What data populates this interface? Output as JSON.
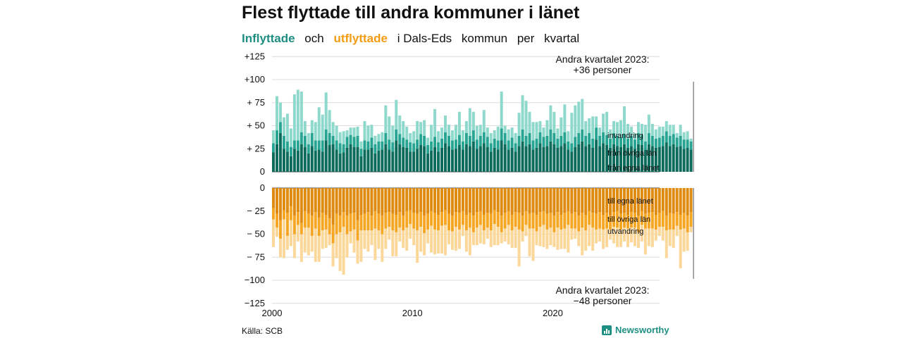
{
  "header": {
    "title": "Flest flyttade till andra kommuner i länet",
    "subtitle": {
      "inflyttade": "Inflyttade",
      "och": "och",
      "utflyttade": "utflyttade",
      "rest": [
        "i Dals-Eds",
        "kommun",
        "per",
        "kvartal"
      ]
    }
  },
  "footer": {
    "source": "Källa: SCB",
    "brand": "Newsworthy"
  },
  "colors": {
    "in_egna": "#0d6b5b",
    "in_ovriga": "#27a592",
    "in_utland": "#8ed8cc",
    "out_egna": "#df8a10",
    "out_ovriga": "#f5a623",
    "out_utland": "#fbd79a"
  },
  "chart_data": {
    "type": "bar",
    "stacked": true,
    "x_start": 2000,
    "x_step": "quarter",
    "x_ticks": [
      "2000",
      "2010",
      "2020"
    ],
    "y_ticks_top": [
      {
        "value": 125,
        "label": "+125"
      },
      {
        "value": 100,
        "label": "+100"
      },
      {
        "value": 75,
        "label": "+ 75"
      },
      {
        "value": 50,
        "label": "+ 50"
      },
      {
        "value": 25,
        "label": "+ 25"
      },
      {
        "value": 0,
        "label": "0"
      }
    ],
    "y_ticks_bottom": [
      {
        "value": 0,
        "label": "0"
      },
      {
        "value": -25,
        "label": "− 25"
      },
      {
        "value": -50,
        "label": "− 50"
      },
      {
        "value": -75,
        "label": "− 75"
      },
      {
        "value": -100,
        "label": "−100"
      },
      {
        "value": -125,
        "label": "−125"
      }
    ],
    "series_labels_top": [
      "invandring",
      "från övriga län",
      "från egna länet"
    ],
    "series_labels_bottom": [
      "till egna länet",
      "till övriga län",
      "utvandring"
    ],
    "annotation_top": [
      "Andra kvartalet 2023:",
      "+36 personer"
    ],
    "annotation_bottom": [
      "Andra kvartalet 2023:",
      "−48 personer"
    ],
    "inflyttade": {
      "fran_egna_lanet": [
        21,
        30,
        42,
        25,
        22,
        17,
        25,
        23,
        30,
        27,
        20,
        28,
        23,
        24,
        22,
        34,
        29,
        30,
        24,
        20,
        21,
        26,
        30,
        27,
        27,
        17,
        24,
        24,
        26,
        20,
        23,
        24,
        30,
        24,
        22,
        34,
        30,
        27,
        26,
        22,
        22,
        25,
        29,
        28,
        20,
        23,
        27,
        22,
        26,
        31,
        28,
        24,
        25,
        29,
        24,
        30,
        28,
        33,
        25,
        28,
        31,
        27,
        22,
        26,
        24,
        34,
        30,
        24,
        26,
        22,
        28,
        33,
        28,
        30,
        24,
        26,
        31,
        27,
        28,
        33,
        30,
        26,
        28,
        31,
        24,
        22,
        27,
        30,
        33,
        28,
        30,
        26,
        35,
        28,
        31,
        29,
        26,
        30,
        28,
        27,
        30,
        26,
        28,
        25,
        30,
        29,
        24,
        30,
        28,
        26,
        27,
        28,
        32,
        28,
        30,
        27,
        28,
        25,
        26,
        24
      ],
      "fran_ovriga_lan": [
        10,
        15,
        12,
        14,
        11,
        10,
        9,
        11,
        13,
        12,
        10,
        14,
        11,
        10,
        12,
        12,
        13,
        9,
        10,
        11,
        9,
        12,
        10,
        11,
        12,
        8,
        10,
        9,
        11,
        10,
        10,
        9,
        12,
        11,
        10,
        12,
        11,
        10,
        9,
        10,
        9,
        10,
        12,
        11,
        9,
        10,
        11,
        10,
        10,
        12,
        11,
        10,
        10,
        11,
        9,
        12,
        11,
        12,
        10,
        11,
        12,
        11,
        9,
        10,
        10,
        13,
        12,
        10,
        11,
        9,
        11,
        13,
        11,
        12,
        10,
        10,
        12,
        11,
        11,
        13,
        12,
        10,
        11,
        12,
        9,
        9,
        11,
        12,
        13,
        11,
        12,
        10,
        13,
        11,
        12,
        11,
        10,
        12,
        11,
        10,
        11,
        10,
        11,
        10,
        12,
        11,
        9,
        12,
        11,
        10,
        10,
        11,
        12,
        11,
        11,
        10,
        11,
        10,
        9,
        9
      ],
      "invandring": [
        14,
        37,
        21,
        20,
        30,
        20,
        50,
        55,
        44,
        16,
        12,
        14,
        20,
        36,
        28,
        40,
        25,
        15,
        16,
        12,
        14,
        7,
        8,
        10,
        10,
        8,
        21,
        17,
        14,
        9,
        8,
        10,
        30,
        25,
        18,
        32,
        20,
        18,
        14,
        10,
        13,
        20,
        13,
        17,
        8,
        18,
        30,
        12,
        12,
        18,
        12,
        11,
        16,
        25,
        12,
        13,
        30,
        20,
        15,
        12,
        24,
        10,
        11,
        9,
        15,
        40,
        8,
        12,
        11,
        11,
        25,
        37,
        38,
        23,
        20,
        18,
        12,
        10,
        17,
        26,
        23,
        11,
        20,
        30,
        11,
        33,
        34,
        34,
        33,
        16,
        16,
        24,
        12,
        9,
        20,
        25,
        10,
        13,
        15,
        19,
        30,
        16,
        10,
        7,
        12,
        12,
        18,
        20,
        13,
        10,
        12,
        10,
        11,
        12,
        10,
        5,
        12,
        8,
        9,
        3
      ]
    },
    "utflyttade": {
      "till_egna_lanet": [
        -22,
        -28,
        -35,
        -24,
        -27,
        -20,
        -30,
        -26,
        -38,
        -25,
        -28,
        -30,
        -26,
        -32,
        -27,
        -29,
        -33,
        -40,
        -28,
        -30,
        -26,
        -30,
        -28,
        -27,
        -35,
        -29,
        -28,
        -26,
        -30,
        -25,
        -28,
        -30,
        -27,
        -26,
        -28,
        -29,
        -26,
        -30,
        -25,
        -24,
        -27,
        -28,
        -26,
        -30,
        -28,
        -25,
        -27,
        -29,
        -26,
        -24,
        -28,
        -30,
        -26,
        -27,
        -25,
        -29,
        -27,
        -30,
        -26,
        -25,
        -29,
        -27,
        -28,
        -24,
        -26,
        -30,
        -27,
        -25,
        -29,
        -26,
        -27,
        -30,
        -25,
        -28,
        -27,
        -29,
        -26,
        -25,
        -28,
        -27,
        -30,
        -26,
        -29,
        -27,
        -25,
        -28,
        -26,
        -30,
        -27,
        -29,
        -25,
        -27,
        -28,
        -26,
        -29,
        -27,
        -30,
        -26,
        -25,
        -28,
        -27,
        -29,
        -26,
        -27,
        -30,
        -25,
        -28,
        -27,
        -26,
        -29,
        -27,
        -25,
        -30,
        -27,
        -28,
        -26,
        -29,
        -27,
        -30,
        -26
      ],
      "till_ovriga_lan": [
        -12,
        -15,
        -20,
        -10,
        -25,
        -15,
        -20,
        -14,
        -12,
        -18,
        -15,
        -22,
        -18,
        -20,
        -19,
        -16,
        -17,
        -20,
        -22,
        -18,
        -16,
        -20,
        -19,
        -18,
        -22,
        -17,
        -18,
        -20,
        -16,
        -19,
        -18,
        -20,
        -17,
        -16,
        -18,
        -19,
        -17,
        -16,
        -18,
        -15,
        -17,
        -18,
        -16,
        -19,
        -17,
        -16,
        -18,
        -17,
        -15,
        -16,
        -18,
        -17,
        -16,
        -18,
        -15,
        -17,
        -16,
        -18,
        -17,
        -15,
        -17,
        -16,
        -18,
        -15,
        -16,
        -18,
        -17,
        -15,
        -17,
        -16,
        -18,
        -17,
        -15,
        -16,
        -17,
        -18,
        -16,
        -15,
        -17,
        -16,
        -18,
        -17,
        -16,
        -17,
        -15,
        -16,
        -18,
        -17,
        -16,
        -17,
        -15,
        -16,
        -17,
        -18,
        -16,
        -17,
        -15,
        -16,
        -18,
        -17,
        -16,
        -15,
        -17,
        -16,
        -18,
        -15,
        -16,
        -17,
        -18,
        -16,
        -15,
        -17,
        -16,
        -18,
        -17,
        -15,
        -16,
        -17,
        -18,
        -16
      ],
      "utvandring": [
        -30,
        -10,
        -20,
        -42,
        -15,
        -28,
        -26,
        -18,
        -30,
        -27,
        -30,
        -17,
        -36,
        -28,
        -20,
        -20,
        -12,
        -25,
        -26,
        -42,
        -52,
        -25,
        -13,
        -25,
        -25,
        -34,
        -20,
        -23,
        -16,
        -34,
        -20,
        -30,
        -22,
        -14,
        -28,
        -26,
        -15,
        -19,
        -25,
        -16,
        -18,
        -35,
        -27,
        -24,
        -15,
        -29,
        -27,
        -25,
        -30,
        -33,
        -15,
        -20,
        -26,
        -21,
        -12,
        -23,
        -30,
        -14,
        -19,
        -20,
        -15,
        -12,
        -18,
        -23,
        -20,
        -12,
        -14,
        -21,
        -19,
        -23,
        -40,
        -11,
        -12,
        -30,
        -35,
        -15,
        -21,
        -24,
        -21,
        -19,
        -16,
        -24,
        -21,
        -22,
        -30,
        -12,
        -11,
        -16,
        -30,
        -22,
        -23,
        -25,
        -15,
        -14,
        -21,
        -20,
        -11,
        -18,
        -21,
        -19,
        -15,
        -20,
        -16,
        -20,
        -17,
        -18,
        -28,
        -19,
        -20,
        -12,
        -10,
        -15,
        -30,
        -18,
        -20,
        -11,
        -42,
        -25,
        -20,
        -6
      ]
    }
  }
}
